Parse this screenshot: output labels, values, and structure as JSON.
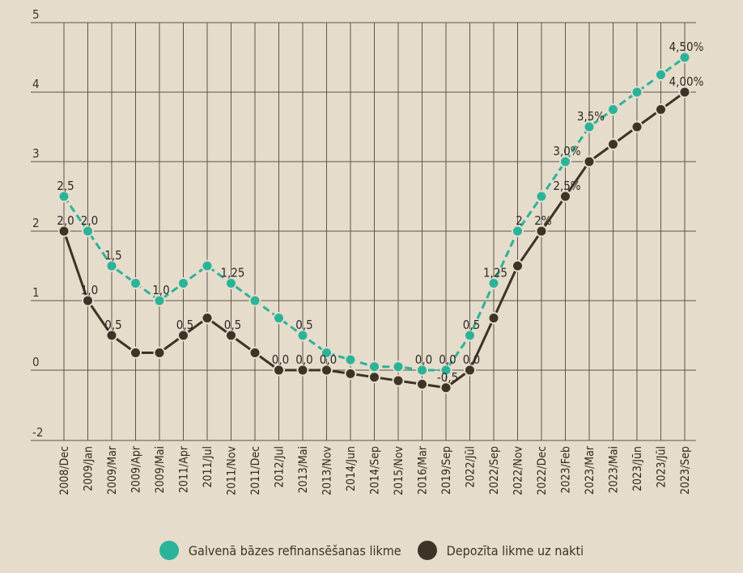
{
  "chart_data": {
    "type": "line",
    "title": "",
    "xlabel": "",
    "ylabel": "",
    "ylim": [
      -2,
      5
    ],
    "y_ticks": [
      "5",
      "4",
      "3",
      "2",
      "1",
      "0",
      "-2"
    ],
    "grid": true,
    "categories": [
      "2008/Dec",
      "2009/Jan",
      "2009/Mar",
      "2009/Apr",
      "2009/Mai",
      "2011/Apr",
      "2011/Jul",
      "2011/Nov",
      "2011/Dec",
      "2012/Jul",
      "2013/Mai",
      "2013/Nov",
      "2014/Jun",
      "2014/Sep",
      "2015/Nov",
      "2016/Mar",
      "2019/Sep",
      "2022/Jūl",
      "2022/Sep",
      "2022/Nov",
      "2022/Dec",
      "2023/Feb",
      "2023/Mar",
      "2023/Mai",
      "2023/Jūn",
      "2023/Jūl",
      "2023/Sep"
    ],
    "series": [
      {
        "name": "Galvenā bāzes refinansēšanas likme",
        "color": "#2bb39a",
        "dash": true,
        "values": [
          2.5,
          2.0,
          1.5,
          1.25,
          1.0,
          1.25,
          1.5,
          1.25,
          1.0,
          0.75,
          0.5,
          0.25,
          0.15,
          0.05,
          0.05,
          0.0,
          0.0,
          0.5,
          1.25,
          2.0,
          2.5,
          3.0,
          3.5,
          3.75,
          4.0,
          4.25,
          4.5
        ],
        "labels": [
          "2,5",
          "2,0",
          "1,5",
          "",
          "1,0",
          "",
          "",
          "1,25",
          "",
          "",
          "0,5",
          "",
          "",
          "",
          "",
          "0,0",
          "0,0",
          "0,5",
          "1,25",
          "2",
          "",
          "3,0%",
          "3,5%",
          "",
          "",
          "",
          "4,50%"
        ]
      },
      {
        "name": "Depozīta likme uz nakti",
        "color": "#3d3428",
        "dash": false,
        "values": [
          2.0,
          1.0,
          0.5,
          0.25,
          0.25,
          0.5,
          0.75,
          0.5,
          0.25,
          0.0,
          0.0,
          0.0,
          -0.1,
          -0.2,
          -0.3,
          -0.4,
          -0.5,
          0.0,
          0.75,
          1.5,
          2.0,
          2.5,
          3.0,
          3.25,
          3.5,
          3.75,
          4.0
        ],
        "labels": [
          "2,0",
          "1,0",
          "0,5",
          "",
          "",
          "0,5",
          "",
          "0,5",
          "",
          "0,0",
          "0,0",
          "0,0",
          "",
          "",
          "",
          "",
          "-0,5",
          "0,0",
          "",
          "",
          "2%",
          "2,5%",
          "",
          "",
          "",
          "",
          "4,00%"
        ]
      }
    ],
    "legend": "bottom"
  }
}
